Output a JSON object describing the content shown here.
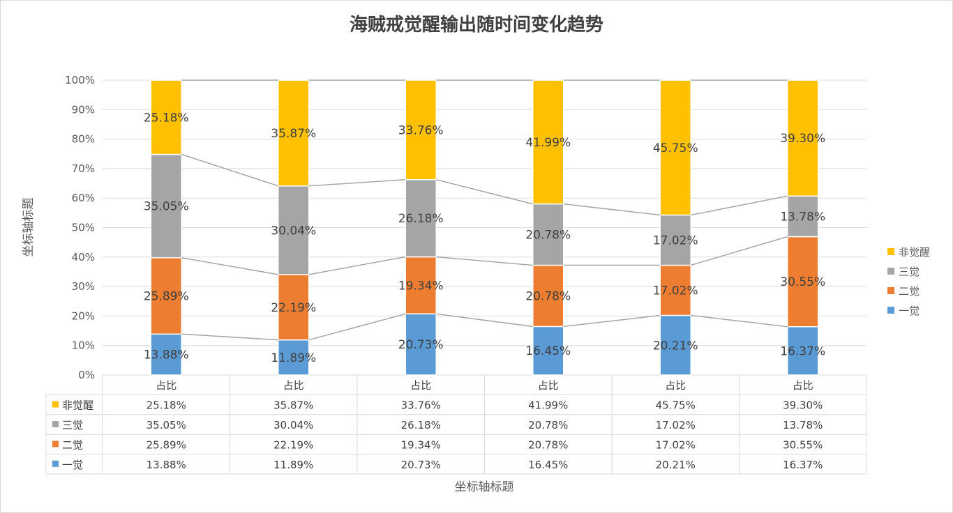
{
  "chart_data": {
    "type": "bar",
    "stacked": "percent",
    "title": "海贼戒觉醒输出随时间变化趋势",
    "xlabel": "坐标轴标题",
    "ylabel": "坐标轴标题",
    "categories": [
      "占比",
      "占比",
      "占比",
      "占比",
      "占比",
      "占比"
    ],
    "ylim": [
      0,
      100
    ],
    "yticks": [
      "0%",
      "10%",
      "20%",
      "30%",
      "40%",
      "50%",
      "60%",
      "70%",
      "80%",
      "90%",
      "100%"
    ],
    "grid": true,
    "legend_position": "right",
    "data_table": true,
    "series_lines": true,
    "series": [
      {
        "name": "一觉",
        "color": "#5B9BD5",
        "values": [
          13.88,
          11.89,
          20.73,
          16.45,
          20.21,
          16.37
        ],
        "labels": [
          "13.88%",
          "11.89%",
          "20.73%",
          "16.45%",
          "20.21%",
          "16.37%"
        ]
      },
      {
        "name": "二觉",
        "color": "#ED7D31",
        "values": [
          25.89,
          22.19,
          19.34,
          20.78,
          17.02,
          30.55
        ],
        "labels": [
          "25.89%",
          "22.19%",
          "19.34%",
          "20.78%",
          "17.02%",
          "30.55%"
        ]
      },
      {
        "name": "三觉",
        "color": "#A5A5A5",
        "values": [
          35.05,
          30.04,
          26.18,
          20.78,
          17.02,
          13.78
        ],
        "labels": [
          "35.05%",
          "30.04%",
          "26.18%",
          "20.78%",
          "17.02%",
          "13.78%"
        ]
      },
      {
        "name": "非觉醒",
        "color": "#FFC000",
        "values": [
          25.18,
          35.87,
          33.76,
          41.99,
          45.75,
          39.3
        ],
        "labels": [
          "25.18%",
          "35.87%",
          "33.76%",
          "41.99%",
          "45.75%",
          "39.30%"
        ]
      }
    ]
  }
}
